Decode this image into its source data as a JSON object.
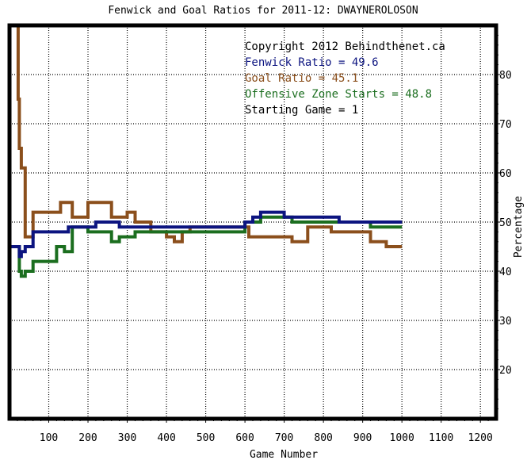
{
  "chart_data": {
    "type": "line",
    "title": "Fenwick and Goal Ratios for 2011-12: DWAYNEROLOSON",
    "xlabel": "Game Number",
    "ylabel": "Percentage",
    "xlim": [
      0,
      1240
    ],
    "ylim": [
      10,
      90
    ],
    "x_ticks": [
      100,
      200,
      300,
      400,
      500,
      600,
      700,
      800,
      900,
      1000,
      1100,
      1200
    ],
    "y_ticks": [
      20,
      30,
      40,
      50,
      60,
      70,
      80
    ],
    "grid": true,
    "y_axis_side": "right",
    "legend_position": "top-right",
    "annotations": [
      {
        "text": "Copyright 2012 Behindthenet.ca",
        "color": "#000000"
      },
      {
        "text": "Fenwick Ratio = 49.6",
        "color": "#0c1480"
      },
      {
        "text": "Goal Ratio = 45.1",
        "color": "#8b4f1c"
      },
      {
        "text": "Offensive Zone Starts = 48.8",
        "color": "#1b6e1f"
      },
      {
        "text": "Starting Game = 1",
        "color": "#000000"
      }
    ],
    "series": [
      {
        "name": "Goal Ratio",
        "color": "#8b4f1c",
        "x": [
          0,
          20,
          22,
          25,
          30,
          40,
          60,
          90,
          100,
          115,
          130,
          140,
          160,
          180,
          200,
          210,
          220,
          230,
          260,
          270,
          300,
          320,
          340,
          360,
          380,
          400,
          420,
          430,
          440,
          460,
          600,
          610,
          650,
          680,
          720,
          760,
          820,
          860,
          880,
          900,
          920,
          960,
          1000
        ],
        "y": [
          90,
          90,
          75,
          65,
          61,
          47,
          52,
          52,
          52,
          52,
          54,
          54,
          51,
          51,
          54,
          54,
          54,
          54,
          51,
          51,
          52,
          50,
          50,
          48,
          48,
          47,
          46,
          46,
          48,
          49,
          49,
          47,
          47,
          47,
          46,
          49,
          48,
          48,
          48,
          48,
          46,
          45,
          45
        ]
      },
      {
        "name": "Offensive Zone Starts",
        "color": "#1b6e1f",
        "x": [
          0,
          20,
          25,
          30,
          40,
          60,
          90,
          100,
          120,
          130,
          140,
          150,
          160,
          180,
          200,
          220,
          240,
          250,
          260,
          280,
          300,
          320,
          340,
          360,
          380,
          400,
          420,
          440,
          460,
          480,
          500,
          520,
          540,
          560,
          580,
          600,
          620,
          640,
          660,
          680,
          700,
          720,
          740,
          760,
          780,
          800,
          820,
          840,
          860,
          880,
          900,
          920,
          940,
          960,
          980,
          1000
        ],
        "y": [
          45,
          45,
          40,
          39,
          40,
          42,
          42,
          42,
          45,
          45,
          44,
          44,
          49,
          49,
          48,
          48,
          48,
          48,
          46,
          47,
          47,
          48,
          48,
          48,
          48,
          48,
          48,
          48,
          48,
          48,
          48,
          48,
          48,
          48,
          48,
          50,
          50,
          51,
          51,
          51,
          51,
          50,
          50,
          50,
          50,
          50,
          50,
          50,
          50,
          50,
          50,
          49,
          49,
          49,
          49,
          49
        ]
      },
      {
        "name": "Fenwick Ratio",
        "color": "#0c1480",
        "x": [
          0,
          20,
          25,
          30,
          40,
          60,
          100,
          130,
          150,
          180,
          200,
          220,
          240,
          260,
          280,
          300,
          320,
          340,
          360,
          400,
          420,
          440,
          460,
          480,
          500,
          520,
          540,
          560,
          580,
          600,
          620,
          640,
          660,
          680,
          700,
          720,
          740,
          760,
          780,
          800,
          820,
          840,
          860,
          880,
          900,
          920,
          940,
          960,
          980,
          1000
        ],
        "y": [
          45,
          45,
          43,
          44,
          45,
          48,
          48,
          48,
          49,
          49,
          49,
          50,
          50,
          50,
          49,
          49,
          49,
          49,
          49,
          49,
          49,
          49,
          49,
          49,
          49,
          49,
          49,
          49,
          49,
          50,
          51,
          52,
          52,
          52,
          51,
          51,
          51,
          51,
          51,
          51,
          51,
          50,
          50,
          50,
          50,
          50,
          50,
          50,
          50,
          50
        ]
      }
    ]
  }
}
